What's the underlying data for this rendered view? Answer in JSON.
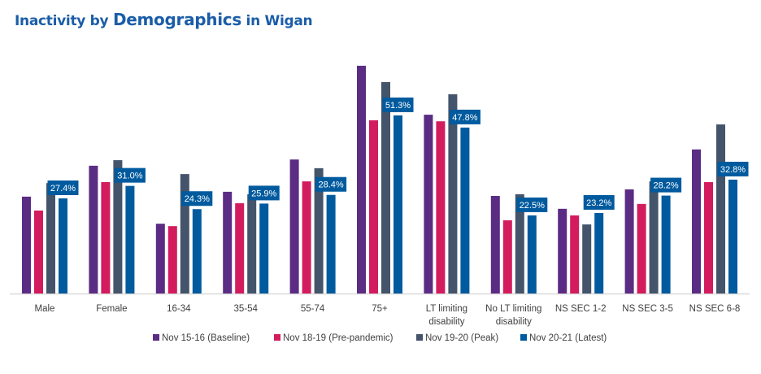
{
  "chart_data": {
    "type": "bar",
    "title_parts": [
      "Inactivity by ",
      "Demographics",
      " in Wigan"
    ],
    "categories": [
      [
        "Male"
      ],
      [
        "Female"
      ],
      [
        "16-34"
      ],
      [
        "35-54"
      ],
      [
        "55-74"
      ],
      [
        "75+"
      ],
      [
        "LT limiting",
        "disability"
      ],
      [
        "No LT limiting",
        "disability"
      ],
      [
        "NS SEC 1-2"
      ],
      [
        "NS SEC 3-5"
      ],
      [
        "NS SEC 6-8"
      ]
    ],
    "series": [
      {
        "name": "Nov 15-16 (Baseline)",
        "color": "#5B2C83",
        "values": [
          27.9,
          36.8,
          20.1,
          29.3,
          38.6,
          65.6,
          51.5,
          28.1,
          24.4,
          30.0,
          41.5
        ]
      },
      {
        "name": "Nov 18-19 (Pre-pandemic)",
        "color": "#D21C5E",
        "values": [
          23.9,
          32.1,
          19.4,
          26.0,
          32.3,
          49.9,
          49.6,
          21.1,
          22.5,
          25.8,
          32.1
        ]
      },
      {
        "name": "Nov 19-20 (Peak)",
        "color": "#44546A",
        "values": [
          31.8,
          38.4,
          34.4,
          28.6,
          36.1,
          60.9,
          57.4,
          28.6,
          19.9,
          32.3,
          48.7
        ]
      },
      {
        "name": "Nov 20-21 (Latest)",
        "color": "#005A9E",
        "values": [
          27.4,
          31.0,
          24.3,
          25.9,
          28.4,
          51.3,
          47.8,
          22.5,
          23.2,
          28.2,
          32.8
        ]
      }
    ],
    "data_labels_series": "Nov 20-21 (Latest)",
    "data_labels": [
      "27.4%",
      "31.0%",
      "24.3%",
      "25.9%",
      "28.4%",
      "51.3%",
      "47.8%",
      "22.5%",
      "23.2%",
      "28.2%",
      "32.8%"
    ],
    "ylim": [
      0,
      70
    ],
    "y_axis_visible": false,
    "grid": false,
    "legend": "bottom"
  }
}
